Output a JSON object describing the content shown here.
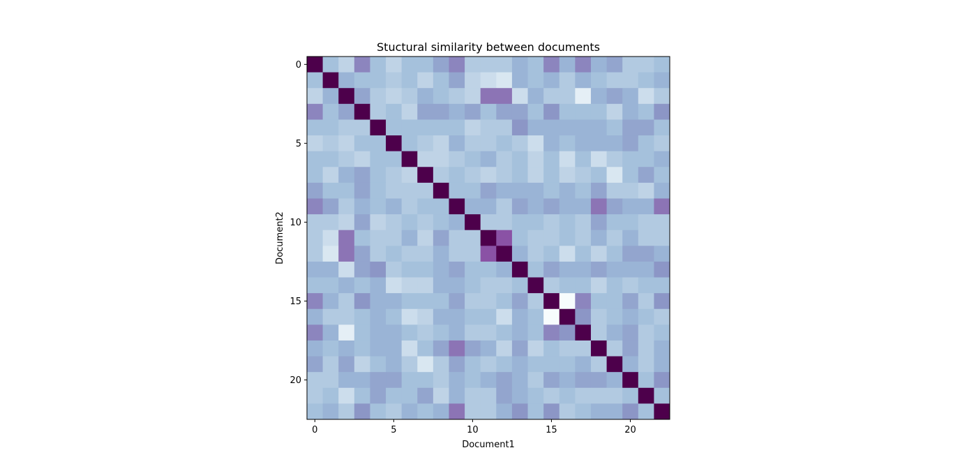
{
  "chart_data": {
    "type": "heatmap",
    "title": "Stuctural similarity between documents",
    "xlabel": "Document1",
    "ylabel": "Document2",
    "x_ticks": [
      0,
      5,
      10,
      15,
      20
    ],
    "y_ticks": [
      0,
      5,
      10,
      15,
      20
    ],
    "n": 23,
    "colormap": "BuPu",
    "vmin": 0.0,
    "vmax": 1.0,
    "grid": false,
    "values": [
      [
        1.0,
        0.35,
        0.25,
        0.55,
        0.35,
        0.25,
        0.35,
        0.35,
        0.45,
        0.55,
        0.3,
        0.3,
        0.3,
        0.4,
        0.35,
        0.55,
        0.4,
        0.55,
        0.4,
        0.45,
        0.3,
        0.3,
        0.35
      ],
      [
        0.35,
        1.0,
        0.4,
        0.35,
        0.35,
        0.3,
        0.35,
        0.25,
        0.35,
        0.45,
        0.25,
        0.2,
        0.15,
        0.4,
        0.35,
        0.4,
        0.3,
        0.4,
        0.35,
        0.3,
        0.3,
        0.35,
        0.4
      ],
      [
        0.25,
        0.4,
        1.0,
        0.45,
        0.3,
        0.25,
        0.3,
        0.4,
        0.35,
        0.3,
        0.25,
        0.6,
        0.6,
        0.2,
        0.4,
        0.3,
        0.3,
        0.1,
        0.4,
        0.45,
        0.4,
        0.2,
        0.3
      ],
      [
        0.55,
        0.35,
        0.45,
        1.0,
        0.3,
        0.35,
        0.25,
        0.45,
        0.45,
        0.4,
        0.45,
        0.35,
        0.45,
        0.45,
        0.35,
        0.5,
        0.35,
        0.35,
        0.35,
        0.25,
        0.4,
        0.35,
        0.5
      ],
      [
        0.35,
        0.35,
        0.3,
        0.3,
        1.0,
        0.35,
        0.35,
        0.35,
        0.35,
        0.35,
        0.25,
        0.3,
        0.3,
        0.5,
        0.4,
        0.4,
        0.4,
        0.4,
        0.4,
        0.35,
        0.45,
        0.45,
        0.35
      ],
      [
        0.25,
        0.3,
        0.25,
        0.35,
        0.35,
        1.0,
        0.35,
        0.3,
        0.25,
        0.4,
        0.3,
        0.3,
        0.35,
        0.3,
        0.2,
        0.4,
        0.35,
        0.4,
        0.4,
        0.4,
        0.45,
        0.35,
        0.3
      ],
      [
        0.35,
        0.35,
        0.3,
        0.25,
        0.35,
        0.35,
        1.0,
        0.25,
        0.25,
        0.3,
        0.35,
        0.4,
        0.3,
        0.35,
        0.25,
        0.35,
        0.2,
        0.35,
        0.2,
        0.3,
        0.35,
        0.35,
        0.4
      ],
      [
        0.35,
        0.25,
        0.4,
        0.45,
        0.35,
        0.3,
        0.25,
        1.0,
        0.3,
        0.35,
        0.3,
        0.25,
        0.3,
        0.35,
        0.25,
        0.35,
        0.25,
        0.3,
        0.35,
        0.15,
        0.35,
        0.45,
        0.35
      ],
      [
        0.45,
        0.35,
        0.35,
        0.45,
        0.35,
        0.3,
        0.3,
        0.3,
        1.0,
        0.35,
        0.35,
        0.45,
        0.4,
        0.4,
        0.4,
        0.35,
        0.4,
        0.35,
        0.45,
        0.3,
        0.3,
        0.25,
        0.4
      ],
      [
        0.55,
        0.45,
        0.3,
        0.4,
        0.35,
        0.4,
        0.3,
        0.35,
        0.35,
        1.0,
        0.4,
        0.4,
        0.3,
        0.45,
        0.4,
        0.45,
        0.4,
        0.4,
        0.6,
        0.45,
        0.4,
        0.4,
        0.6
      ],
      [
        0.3,
        0.3,
        0.25,
        0.45,
        0.25,
        0.3,
        0.35,
        0.3,
        0.35,
        0.4,
        1.0,
        0.3,
        0.3,
        0.35,
        0.35,
        0.3,
        0.35,
        0.3,
        0.45,
        0.35,
        0.35,
        0.3,
        0.3
      ],
      [
        0.3,
        0.2,
        0.6,
        0.35,
        0.3,
        0.3,
        0.4,
        0.25,
        0.45,
        0.3,
        0.3,
        1.0,
        0.7,
        0.35,
        0.3,
        0.3,
        0.35,
        0.3,
        0.4,
        0.3,
        0.4,
        0.3,
        0.3
      ],
      [
        0.3,
        0.15,
        0.6,
        0.45,
        0.3,
        0.35,
        0.3,
        0.3,
        0.4,
        0.3,
        0.3,
        0.7,
        1.0,
        0.4,
        0.3,
        0.35,
        0.2,
        0.35,
        0.25,
        0.35,
        0.45,
        0.45,
        0.4
      ],
      [
        0.4,
        0.4,
        0.2,
        0.45,
        0.5,
        0.3,
        0.35,
        0.35,
        0.4,
        0.45,
        0.35,
        0.35,
        0.4,
        1.0,
        0.35,
        0.45,
        0.4,
        0.4,
        0.45,
        0.4,
        0.4,
        0.4,
        0.5
      ],
      [
        0.35,
        0.35,
        0.4,
        0.35,
        0.4,
        0.2,
        0.25,
        0.25,
        0.4,
        0.4,
        0.35,
        0.3,
        0.3,
        0.35,
        1.0,
        0.3,
        0.35,
        0.35,
        0.25,
        0.35,
        0.3,
        0.35,
        0.35
      ],
      [
        0.55,
        0.4,
        0.3,
        0.5,
        0.4,
        0.4,
        0.35,
        0.35,
        0.35,
        0.45,
        0.3,
        0.3,
        0.35,
        0.45,
        0.3,
        1.0,
        0.0,
        0.55,
        0.35,
        0.35,
        0.45,
        0.3,
        0.5
      ],
      [
        0.4,
        0.3,
        0.3,
        0.35,
        0.4,
        0.35,
        0.2,
        0.25,
        0.4,
        0.4,
        0.35,
        0.35,
        0.2,
        0.4,
        0.35,
        0.0,
        1.0,
        0.5,
        0.3,
        0.35,
        0.4,
        0.35,
        0.3
      ],
      [
        0.55,
        0.4,
        0.1,
        0.35,
        0.4,
        0.4,
        0.35,
        0.3,
        0.35,
        0.4,
        0.3,
        0.3,
        0.35,
        0.4,
        0.35,
        0.55,
        0.5,
        1.0,
        0.3,
        0.4,
        0.45,
        0.3,
        0.35
      ],
      [
        0.4,
        0.35,
        0.4,
        0.35,
        0.4,
        0.4,
        0.2,
        0.35,
        0.45,
        0.6,
        0.45,
        0.4,
        0.25,
        0.45,
        0.25,
        0.35,
        0.3,
        0.3,
        1.0,
        0.3,
        0.45,
        0.3,
        0.4
      ],
      [
        0.45,
        0.3,
        0.45,
        0.25,
        0.35,
        0.4,
        0.3,
        0.15,
        0.3,
        0.45,
        0.35,
        0.3,
        0.35,
        0.4,
        0.35,
        0.35,
        0.35,
        0.4,
        0.3,
        1.0,
        0.4,
        0.3,
        0.4
      ],
      [
        0.3,
        0.3,
        0.4,
        0.4,
        0.45,
        0.45,
        0.35,
        0.35,
        0.3,
        0.4,
        0.35,
        0.4,
        0.45,
        0.4,
        0.3,
        0.45,
        0.4,
        0.45,
        0.45,
        0.4,
        1.0,
        0.35,
        0.5
      ],
      [
        0.3,
        0.35,
        0.2,
        0.35,
        0.45,
        0.35,
        0.35,
        0.45,
        0.25,
        0.4,
        0.3,
        0.3,
        0.45,
        0.4,
        0.35,
        0.3,
        0.35,
        0.3,
        0.3,
        0.3,
        0.35,
        1.0,
        0.35
      ],
      [
        0.35,
        0.4,
        0.3,
        0.5,
        0.35,
        0.3,
        0.4,
        0.35,
        0.4,
        0.6,
        0.3,
        0.3,
        0.4,
        0.5,
        0.35,
        0.5,
        0.3,
        0.35,
        0.4,
        0.4,
        0.5,
        0.35,
        1.0
      ]
    ]
  }
}
